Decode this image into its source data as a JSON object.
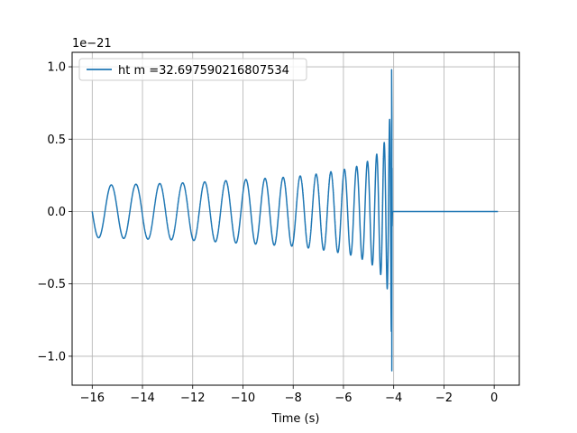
{
  "chart_data": {
    "type": "line",
    "title": "",
    "xlabel": "Time (s)",
    "ylabel": "",
    "y_offset_text": "1e−21",
    "xlim": [
      -16.8,
      1.0
    ],
    "ylim": [
      -1.2,
      1.1
    ],
    "x_ticks": [
      -16,
      -14,
      -12,
      -10,
      -8,
      -6,
      -4,
      -2,
      0
    ],
    "x_tick_labels": [
      "−16",
      "−14",
      "−12",
      "−10",
      "−8",
      "−6",
      "−4",
      "−2",
      "0"
    ],
    "y_ticks": [
      -1.0,
      -0.5,
      0.0,
      0.5,
      1.0
    ],
    "y_tick_labels": [
      "−1.0",
      "−0.5",
      "0.0",
      "0.5",
      "1.0"
    ],
    "grid": true,
    "legend_position": "top-left",
    "series": [
      {
        "name": "ht m =32.697590216807534",
        "color": "#1f77b4",
        "x_start": -16.0,
        "merger_time": -4.07,
        "x_end": 0.15,
        "envelope_t": [
          -16.0,
          -14.0,
          -12.0,
          -10.0,
          -8.0,
          -7.0,
          -6.0,
          -5.5,
          -5.0,
          -4.7,
          -4.5,
          -4.3,
          -4.2,
          -4.12,
          -4.09,
          -4.07
        ],
        "envelope_amplitude": [
          0.18,
          0.19,
          0.2,
          0.22,
          0.24,
          0.26,
          0.29,
          0.31,
          0.35,
          0.39,
          0.44,
          0.5,
          0.58,
          0.7,
          0.85,
          1.0
        ],
        "peak_max": 0.98,
        "peak_min": -1.1,
        "post_merger_value": 0.0
      }
    ]
  }
}
